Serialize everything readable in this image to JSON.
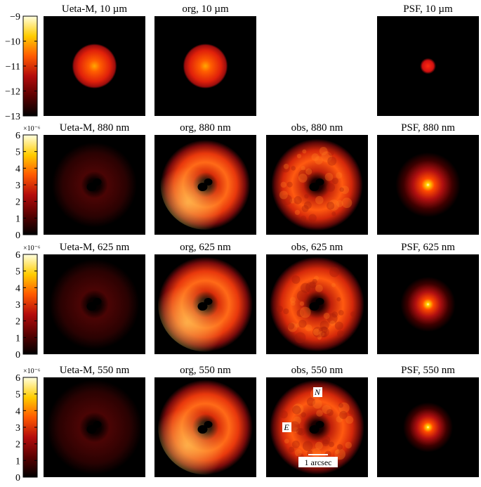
{
  "figure": {
    "rows": [
      {
        "panels": [
          {
            "title": "Ueta-M, 10 µm",
            "kind": "disk",
            "size": 0.45,
            "peak": 0.55
          },
          {
            "title": "org, 10 µm",
            "kind": "disk",
            "size": 0.45,
            "peak": 0.55
          },
          null,
          {
            "title": "PSF, 10 µm",
            "kind": "dot",
            "size": 0.16,
            "peak": 0.5
          }
        ],
        "colorbar": {
          "ticks": [
            "−9",
            "−10",
            "−11",
            "−12",
            "−13"
          ],
          "multiplier": ""
        }
      },
      {
        "panels": [
          {
            "title": "Ueta-M, 880 nm",
            "kind": "ring",
            "size": 0.85,
            "peak": 0.3
          },
          {
            "title": "org, 880 nm",
            "kind": "ring",
            "size": 0.9,
            "peak": 0.55
          },
          {
            "title": "obs, 880 nm",
            "kind": "ring-noisy",
            "size": 0.92,
            "peak": 0.45
          },
          {
            "title": "PSF, 880 nm",
            "kind": "psf",
            "size": 0.65,
            "peak": 0.85
          }
        ],
        "colorbar": {
          "ticks": [
            "6",
            "5",
            "4",
            "3",
            "2",
            "1",
            "0"
          ],
          "multiplier": "×10⁻⁶"
        }
      },
      {
        "panels": [
          {
            "title": "Ueta-M, 625 nm",
            "kind": "ring",
            "size": 0.9,
            "peak": 0.25
          },
          {
            "title": "org, 625 nm",
            "kind": "ring",
            "size": 0.95,
            "peak": 0.62
          },
          {
            "title": "obs, 625 nm",
            "kind": "ring-noisy",
            "size": 0.95,
            "peak": 0.5
          },
          {
            "title": "PSF, 625 nm",
            "kind": "psf",
            "size": 0.55,
            "peak": 0.75
          }
        ],
        "colorbar": {
          "ticks": [
            "6",
            "5",
            "4",
            "3",
            "2",
            "1",
            "0"
          ],
          "multiplier": "×10⁻⁶"
        }
      },
      {
        "panels": [
          {
            "title": "Ueta-M, 550 nm",
            "kind": "ring",
            "size": 0.95,
            "peak": 0.22
          },
          {
            "title": "org, 550 nm",
            "kind": "ring",
            "size": 0.95,
            "peak": 0.6
          },
          {
            "title": "obs, 550 nm",
            "kind": "ring-noisy",
            "size": 0.95,
            "peak": 0.48,
            "labels": {
              "north": "N",
              "east": "E",
              "scale": "1 arcsec"
            }
          },
          {
            "title": "PSF, 550 nm",
            "kind": "psf",
            "size": 0.5,
            "peak": 0.7
          }
        ],
        "colorbar": {
          "ticks": [
            "6",
            "5",
            "4",
            "3",
            "2",
            "1",
            "0"
          ],
          "multiplier": "×10⁻⁶"
        }
      }
    ]
  }
}
